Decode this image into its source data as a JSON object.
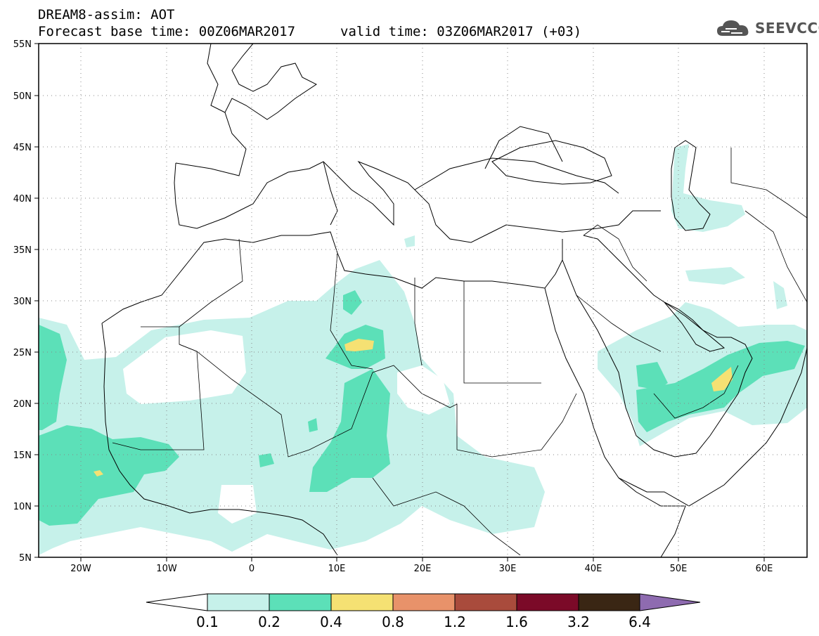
{
  "header": {
    "title": "DREAM8-assim: AOT",
    "base_time": "Forecast base time: 00Z06MAR2017",
    "valid_time": "valid time: 03Z06MAR2017 (+03)"
  },
  "logo": {
    "text": "SEEVCCC",
    "icon": "cloud-icon"
  },
  "map": {
    "lat_labels": [
      "55N",
      "50N",
      "45N",
      "40N",
      "35N",
      "30N",
      "25N",
      "20N",
      "15N",
      "10N",
      "5N"
    ],
    "lon_labels": [
      "20W",
      "10W",
      "0",
      "10E",
      "20E",
      "30E",
      "40E",
      "50E",
      "60E"
    ],
    "lon_range": [
      -25,
      65
    ],
    "lat_range": [
      5,
      55
    ],
    "grid": "dotted"
  },
  "colorbar": {
    "labels": [
      "0.1",
      "0.2",
      "0.4",
      "0.8",
      "1.2",
      "1.6",
      "3.2",
      "6.4"
    ],
    "colors": [
      "#ffffff",
      "#c6f1ea",
      "#5ce0b8",
      "#f5e173",
      "#e8926a",
      "#a94b3c",
      "#7b0a28",
      "#3a2614",
      "#8e6bb0"
    ]
  }
}
